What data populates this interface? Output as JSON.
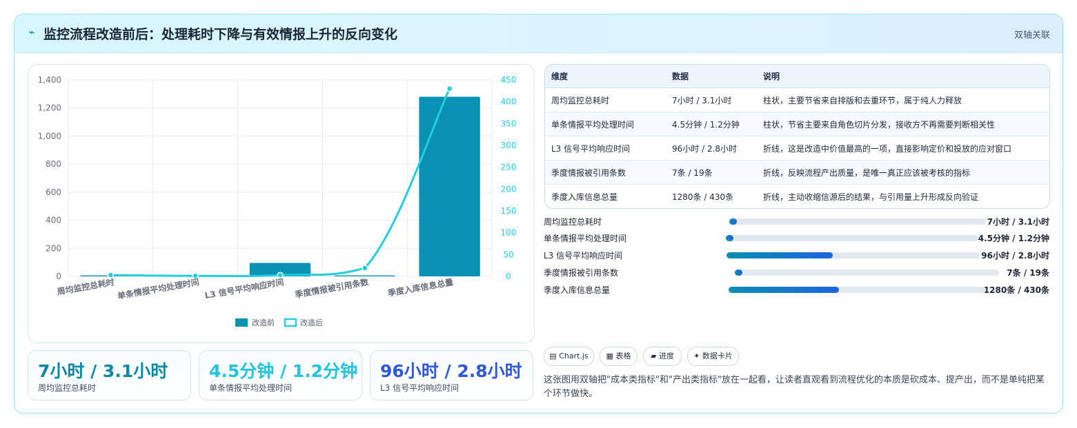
{
  "header": {
    "icon": "chart-line-icon",
    "title": "监控流程改造前后：处理耗时下降与有效情报上升的反向变化",
    "tag": "双轴关联"
  },
  "chart_data": {
    "type": "bar",
    "categories": [
      "周均监控总耗时",
      "单条情报平均处理时间",
      "L3 信号平均响应时间",
      "季度情报被引用条数",
      "季度入库信息总量"
    ],
    "series": [
      {
        "name": "改造前",
        "type": "bar",
        "axis": "left",
        "color": "#0891b2",
        "values": [
          7,
          4.5,
          96,
          7,
          1280
        ]
      },
      {
        "name": "改造后",
        "type": "line",
        "axis": "right",
        "color": "#22cde0",
        "values": [
          3.1,
          1.2,
          2.8,
          19,
          430
        ]
      }
    ],
    "y_left": {
      "min": 0,
      "max": 1400,
      "ticks": [
        0,
        200,
        400,
        600,
        800,
        1000,
        1200,
        1400
      ],
      "tick_labels": [
        "0",
        "200",
        "400",
        "600",
        "800",
        "1,000",
        "1,200",
        "1,400"
      ]
    },
    "y_right": {
      "min": 0,
      "max": 450,
      "ticks": [
        0,
        50,
        100,
        150,
        200,
        250,
        300,
        350,
        400,
        450
      ]
    },
    "grid": true,
    "legend": "bottom"
  },
  "kpis": [
    {
      "value": "7小时 / 3.1小时",
      "label": "周均监控总耗时",
      "color": "#0b88a8"
    },
    {
      "value": "4.5分钟 / 1.2分钟",
      "label": "单条情报平均处理时间",
      "color": "#22c3dc"
    },
    {
      "value": "96小时 / 2.8小时",
      "label": "L3 信号平均响应时间",
      "color": "#2f58d8"
    }
  ],
  "table": {
    "headers": [
      "维度",
      "数据",
      "说明"
    ],
    "rows": [
      [
        "周均监控总耗时",
        "7小时 / 3.1小时",
        "柱状，主要节省来自排版和去重环节，属于纯人力释放"
      ],
      [
        "单条情报平均处理时间",
        "4.5分钟 / 1.2分钟",
        "柱状，节省主要来自角色切片分发，接收方不再需要判断相关性"
      ],
      [
        "L3 信号平均响应时间",
        "96小时 / 2.8小时",
        "折线，这是改造中价值最高的一项，直接影响定价和投放的应对窗口"
      ],
      [
        "季度情报被引用条数",
        "7条 / 19条",
        "折线，反映流程产出质量，是唯一真正应该被考核的指标"
      ],
      [
        "季度入库信息总量",
        "1280条 / 430条",
        "折线，主动收缩信源后的结果，与引用量上升形成反向验证"
      ]
    ]
  },
  "progress": [
    {
      "label": "周均监控总耗时",
      "value": "7小时 / 3.1小时",
      "fraction": 0.03
    },
    {
      "label": "单条情报平均处理时间",
      "value": "4.5分钟 / 1.2分钟",
      "fraction": 0.03
    },
    {
      "label": "L3 信号平均响应时间",
      "value": "96小时 / 2.8小时",
      "fraction": 0.42
    },
    {
      "label": "季度情报被引用条数",
      "value": "7条 / 19条",
      "fraction": 0.03
    },
    {
      "label": "季度入库信息总量",
      "value": "1280条 / 430条",
      "fraction": 0.43
    }
  ],
  "chips": [
    {
      "icon": "chart-icon",
      "glyph": "▤",
      "label": "Chart.js"
    },
    {
      "icon": "table-icon",
      "glyph": "▦",
      "label": "表格"
    },
    {
      "icon": "progress-icon",
      "glyph": "▰",
      "label": "进度"
    },
    {
      "icon": "card-icon",
      "glyph": "✦",
      "label": "数据卡片"
    }
  ],
  "note": "这张图用双轴把\"成本类指标\"和\"产出类指标\"放在一起看，让读者直观看到流程优化的本质是砍成本、提产出，而不是单纯把某个环节做快。"
}
